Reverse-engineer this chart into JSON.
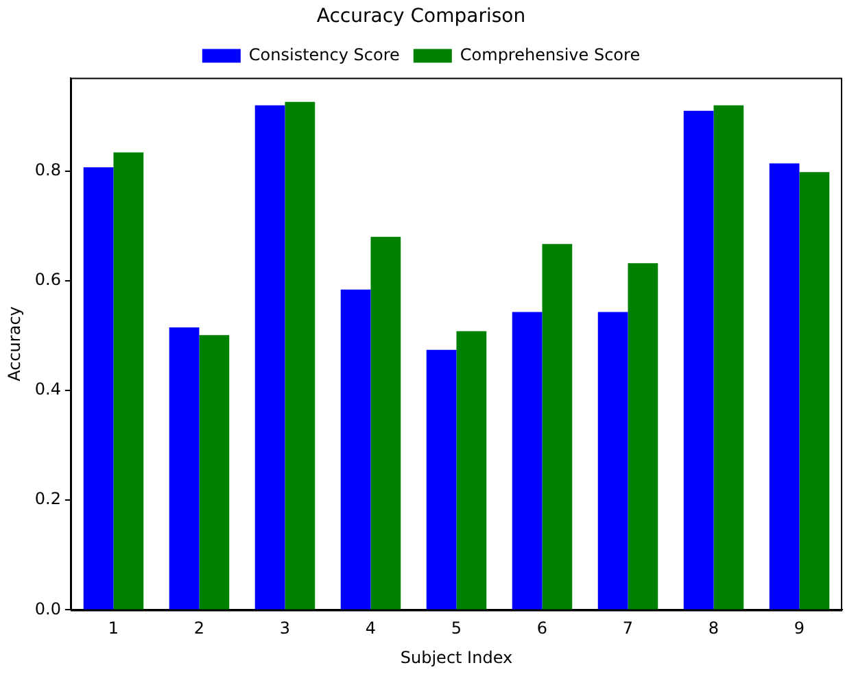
{
  "chart_data": {
    "type": "bar",
    "title": "Accuracy Comparison",
    "xlabel": "Subject Index",
    "ylabel": "Accuracy",
    "categories": [
      "1",
      "2",
      "3",
      "4",
      "5",
      "6",
      "7",
      "8",
      "9"
    ],
    "series": [
      {
        "name": "Consistency Score",
        "color": "#0000ff",
        "values": [
          0.807,
          0.515,
          0.92,
          0.584,
          0.474,
          0.543,
          0.543,
          0.91,
          0.814
        ]
      },
      {
        "name": "Comprehensive Score",
        "color": "#008000",
        "values": [
          0.834,
          0.501,
          0.926,
          0.68,
          0.508,
          0.667,
          0.632,
          0.92,
          0.798
        ]
      }
    ],
    "ylim": [
      0,
      0.97
    ],
    "yticks": [
      {
        "value": 0,
        "label": "0.0"
      },
      0.2,
      0.4,
      0.6,
      0.8
    ],
    "grid": false,
    "legend": "top"
  }
}
